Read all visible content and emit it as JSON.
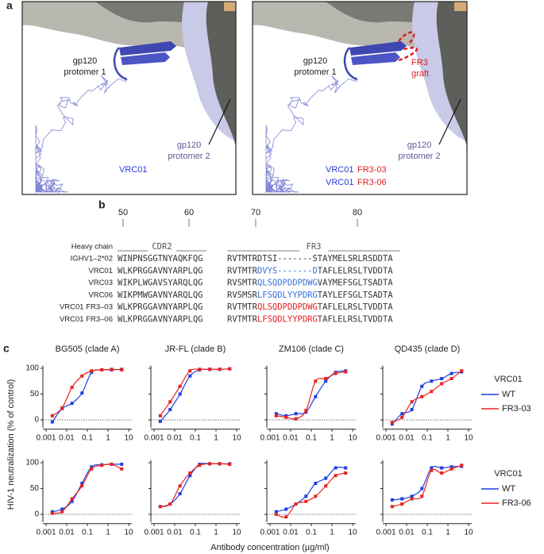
{
  "panel_a": {
    "label": "a",
    "left": {
      "protomer1": [
        "gp120",
        "protomer 1"
      ],
      "protomer2": [
        "gp120",
        "protomer 2"
      ],
      "antibody": "VRC01"
    },
    "right": {
      "protomer1": [
        "gp120",
        "protomer 1"
      ],
      "graft": [
        "FR3",
        "graft"
      ],
      "protomer2": [
        "gp120",
        "protomer 2"
      ],
      "antibodies": [
        [
          "VRC01",
          "FR3-03"
        ],
        [
          "VRC01",
          "FR3-06"
        ]
      ]
    }
  },
  "panel_b": {
    "label": "b",
    "positions": [
      50,
      60,
      70,
      80
    ],
    "header": "Heavy chain",
    "regions": [
      "CDR2",
      "FR3"
    ],
    "rows": [
      {
        "name": "IGHV1–2*02",
        "seq1": "WINPNSGGTNYAQKFQG",
        "seq2": [
          {
            "text": "RVTMTRDTSI-------STAYMELSRLRSDDTA",
            "color": "#333333"
          }
        ]
      },
      {
        "name": "VRC01",
        "seq1": "WLKPRGGAVNYARPLQG",
        "seq2": [
          {
            "text": "RVTMTR",
            "color": "#333333"
          },
          {
            "text": "DVYS-------D",
            "color": "#3a6fd8"
          },
          {
            "text": "TAFLELRSLTVDDTA",
            "color": "#333333"
          }
        ]
      },
      {
        "name": "VRC03",
        "seq1": "WIKPLWGAVSYARQLQG",
        "seq2": [
          {
            "text": "RVSMTR",
            "color": "#333333"
          },
          {
            "text": "QLSQDPDDPDWG",
            "color": "#3a6fd8"
          },
          {
            "text": "VAYMEFSGLTSADTA",
            "color": "#333333"
          }
        ]
      },
      {
        "name": "VRC06",
        "seq1": "WIKPMWGAVNYARQLQG",
        "seq2": [
          {
            "text": "RVSMSR",
            "color": "#333333"
          },
          {
            "text": "LFSQDLYYPDRG",
            "color": "#3a6fd8"
          },
          {
            "text": "TAYLEFSGLTSADTA",
            "color": "#333333"
          }
        ]
      },
      {
        "name": "VRC01 FR3–03",
        "seq1": "WLKPRGGAVNYARPLQG",
        "seq2": [
          {
            "text": "RVTMTR",
            "color": "#333333"
          },
          {
            "text": "QLSQDPDDPDWG",
            "color": "#e02020"
          },
          {
            "text": "TAFLELRSLTVDDTA",
            "color": "#333333"
          }
        ]
      },
      {
        "name": "VRC01 FR3–06",
        "seq1": "WLKPRGGAVNYARPLQG",
        "seq2": [
          {
            "text": "RVTMTR",
            "color": "#333333"
          },
          {
            "text": "LFSQDLYYPDRG",
            "color": "#e02020"
          },
          {
            "text": "TAFLELRSLTVDDTA",
            "color": "#333333"
          }
        ]
      }
    ]
  },
  "panel_c": {
    "label": "c",
    "y_label": "HIV-1 neutralization (% of control)",
    "x_label": "Antibody concentration (µg/ml)"
  },
  "chart_data": [
    {
      "type": "line",
      "title": "BG505 (clade A)",
      "log_x": true,
      "zero_line": true,
      "ytick_labels": true,
      "x": [
        0.002,
        0.006,
        0.018,
        0.055,
        0.16,
        0.5,
        1.5,
        4.6
      ],
      "xlim": [
        0.001,
        10
      ],
      "xticks": [
        0.001,
        0.01,
        0.1,
        1,
        10
      ],
      "ylim": [
        -15,
        105
      ],
      "yticks": [
        0,
        50,
        100
      ],
      "series": [
        {
          "color": "#1f3fe0",
          "values": [
            -4,
            22,
            32,
            52,
            92,
            97,
            97,
            98
          ]
        },
        {
          "color": "#e8231f",
          "values": [
            8,
            23,
            63,
            85,
            95,
            97,
            98,
            97
          ]
        }
      ]
    },
    {
      "type": "line",
      "title": "JR-FL (clade B)",
      "log_x": true,
      "zero_line": true,
      "ytick_labels": false,
      "x": [
        0.002,
        0.006,
        0.018,
        0.055,
        0.16,
        0.5,
        1.5,
        4.6
      ],
      "xlim": [
        0.001,
        10
      ],
      "xticks": [
        0.001,
        0.01,
        0.1,
        1,
        10
      ],
      "ylim": [
        -15,
        105
      ],
      "yticks": [
        0,
        50,
        100
      ],
      "series": [
        {
          "color": "#1f3fe0",
          "values": [
            -3,
            20,
            50,
            85,
            97,
            98,
            98,
            99
          ]
        },
        {
          "color": "#e8231f",
          "values": [
            8,
            35,
            65,
            95,
            98,
            98,
            98,
            99
          ]
        }
      ]
    },
    {
      "type": "line",
      "title": "ZM106 (clade C)",
      "log_x": true,
      "zero_line": true,
      "ytick_labels": false,
      "x": [
        0.002,
        0.006,
        0.018,
        0.055,
        0.16,
        0.5,
        1.5,
        4.6
      ],
      "xlim": [
        0.001,
        10
      ],
      "xticks": [
        0.001,
        0.01,
        0.1,
        1,
        10
      ],
      "ylim": [
        -15,
        105
      ],
      "yticks": [
        0,
        50,
        100
      ],
      "series": [
        {
          "color": "#1f3fe0",
          "values": [
            12,
            8,
            12,
            15,
            45,
            75,
            92,
            95
          ]
        },
        {
          "color": "#e8231f",
          "values": [
            8,
            5,
            2,
            18,
            75,
            80,
            90,
            93
          ]
        }
      ]
    },
    {
      "type": "line",
      "title": "QD435 (clade D)",
      "log_x": true,
      "zero_line": true,
      "ytick_labels": false,
      "legend_title": "VRC01",
      "x": [
        0.002,
        0.006,
        0.018,
        0.055,
        0.16,
        0.5,
        1.5,
        4.6
      ],
      "xlim": [
        0.001,
        10
      ],
      "xticks": [
        0.001,
        0.01,
        0.1,
        1,
        10
      ],
      "ylim": [
        -15,
        105
      ],
      "yticks": [
        0,
        50,
        100
      ],
      "series": [
        {
          "name": "WT",
          "color": "#1f3fe0",
          "values": [
            -8,
            12,
            20,
            65,
            75,
            80,
            90,
            93
          ]
        },
        {
          "name": "FR3-03",
          "color": "#e8231f",
          "values": [
            -5,
            5,
            35,
            45,
            55,
            70,
            80,
            95
          ]
        }
      ]
    },
    {
      "type": "line",
      "log_x": true,
      "zero_line": true,
      "ytick_labels": true,
      "x": [
        0.002,
        0.006,
        0.018,
        0.055,
        0.16,
        0.5,
        1.5,
        4.6
      ],
      "xlim": [
        0.001,
        10
      ],
      "xticks": [
        0.001,
        0.01,
        0.1,
        1,
        10
      ],
      "ylim": [
        -15,
        105
      ],
      "yticks": [
        0,
        50,
        100
      ],
      "series": [
        {
          "color": "#1f3fe0",
          "values": [
            5,
            10,
            25,
            60,
            92,
            96,
            97,
            97
          ]
        },
        {
          "color": "#e8231f",
          "values": [
            2,
            5,
            30,
            55,
            88,
            95,
            97,
            88
          ]
        }
      ]
    },
    {
      "type": "line",
      "log_x": true,
      "zero_line": true,
      "ytick_labels": false,
      "x": [
        0.002,
        0.006,
        0.018,
        0.055,
        0.16,
        0.5,
        1.5,
        4.6
      ],
      "xlim": [
        0.001,
        10
      ],
      "xticks": [
        0.001,
        0.01,
        0.1,
        1,
        10
      ],
      "ylim": [
        -15,
        105
      ],
      "yticks": [
        0,
        50,
        100
      ],
      "series": [
        {
          "color": "#1f3fe0",
          "values": [
            15,
            20,
            40,
            75,
            97,
            98,
            98,
            98
          ]
        },
        {
          "color": "#e8231f",
          "values": [
            15,
            20,
            55,
            80,
            95,
            98,
            98,
            97
          ]
        }
      ]
    },
    {
      "type": "line",
      "log_x": true,
      "zero_line": true,
      "ytick_labels": false,
      "x": [
        0.002,
        0.006,
        0.018,
        0.055,
        0.16,
        0.5,
        1.5,
        4.6
      ],
      "xlim": [
        0.001,
        10
      ],
      "xticks": [
        0.001,
        0.01,
        0.1,
        1,
        10
      ],
      "ylim": [
        -15,
        105
      ],
      "yticks": [
        0,
        50,
        100
      ],
      "series": [
        {
          "color": "#1f3fe0",
          "values": [
            5,
            10,
            20,
            35,
            60,
            70,
            90,
            90
          ]
        },
        {
          "color": "#e8231f",
          "values": [
            0,
            -5,
            20,
            25,
            35,
            55,
            75,
            80
          ]
        }
      ]
    },
    {
      "type": "line",
      "log_x": true,
      "zero_line": true,
      "ytick_labels": false,
      "legend_title": "VRC01",
      "x": [
        0.002,
        0.006,
        0.018,
        0.055,
        0.16,
        0.5,
        1.5,
        4.6
      ],
      "xlim": [
        0.001,
        10
      ],
      "xticks": [
        0.001,
        0.01,
        0.1,
        1,
        10
      ],
      "ylim": [
        -15,
        105
      ],
      "yticks": [
        0,
        50,
        100
      ],
      "series": [
        {
          "name": "WT",
          "color": "#1f3fe0",
          "values": [
            28,
            30,
            35,
            50,
            90,
            90,
            92,
            93
          ]
        },
        {
          "name": "FR3-06",
          "color": "#e8231f",
          "values": [
            15,
            20,
            30,
            35,
            85,
            80,
            88,
            95
          ]
        }
      ]
    }
  ]
}
